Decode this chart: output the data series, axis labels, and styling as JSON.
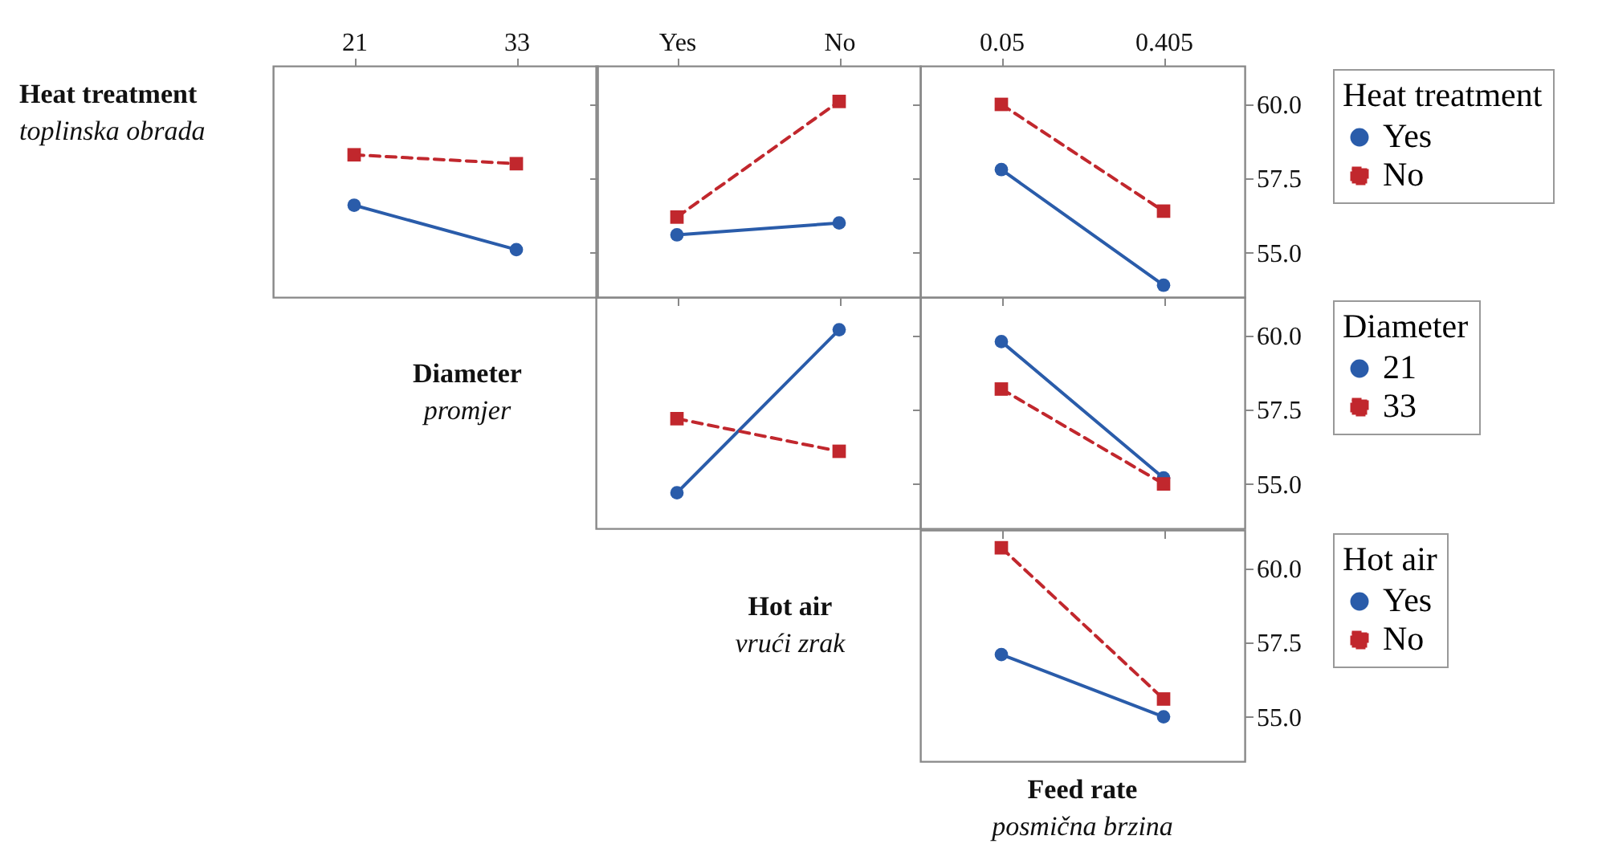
{
  "chart_data": [
    {
      "type": "line",
      "ylabel": "Heat treatment\ntoplinska obrada",
      "xlabel": "Diameter\npromjer",
      "categories": [
        "21",
        "33"
      ],
      "ylim": [
        53.5,
        61.3
      ],
      "yticks": [
        55,
        57.5,
        60
      ],
      "tick_labels": "x",
      "series": [
        {
          "color": "#2a5caa",
          "marker": "circle",
          "line_style": "solid",
          "values": [
            56.6,
            55.1
          ]
        },
        {
          "color": "#c1272d",
          "marker": "square",
          "line_style": "dashed",
          "values": [
            58.3,
            58.0
          ]
        }
      ]
    },
    {
      "type": "line",
      "categories": [
        "Yes",
        "No"
      ],
      "ylim": [
        53.5,
        61.3
      ],
      "yticks": [
        55,
        57.5,
        60
      ],
      "tick_labels": "x",
      "series": [
        {
          "color": "#2a5caa",
          "marker": "circle",
          "line_style": "solid",
          "values": [
            55.6,
            56.0
          ]
        },
        {
          "color": "#c1272d",
          "marker": "square",
          "line_style": "dashed",
          "values": [
            56.2,
            60.1
          ]
        }
      ]
    },
    {
      "type": "line",
      "categories": [
        "0.05",
        "0.405"
      ],
      "ylim": [
        53.5,
        61.3
      ],
      "yticks": [
        {
          "value": 55,
          "label": "55.0"
        },
        {
          "value": 57.5,
          "label": "57.5"
        },
        {
          "value": 60,
          "label": "60.0"
        }
      ],
      "legend": "right",
      "legend_title": "Heat treatment",
      "series": [
        {
          "name": "Yes",
          "color": "#2a5caa",
          "marker": "circle",
          "line_style": "solid",
          "values": [
            57.8,
            53.9
          ]
        },
        {
          "name": "No",
          "color": "#c1272d",
          "marker": "square",
          "line_style": "dashed",
          "values": [
            60.0,
            56.4
          ]
        }
      ]
    },
    {
      "type": "line",
      "xlabel": "Hot air\nvrući zrak",
      "categories": [
        null,
        null
      ],
      "ylim": [
        53.5,
        61.3
      ],
      "yticks": [
        55,
        57.5,
        60
      ],
      "tick_labels": false,
      "series": [
        {
          "color": "#2a5caa",
          "marker": "circle",
          "line_style": "solid",
          "values": [
            54.7,
            60.2
          ]
        },
        {
          "color": "#c1272d",
          "marker": "square",
          "line_style": "dashed",
          "values": [
            57.2,
            56.1
          ]
        }
      ]
    },
    {
      "type": "line",
      "categories": [
        "0.05",
        "0.405"
      ],
      "ylim": [
        53.5,
        61.3
      ],
      "yticks": [
        {
          "value": 55,
          "label": "55.0"
        },
        {
          "value": 57.5,
          "label": "57.5"
        },
        {
          "value": 60,
          "label": "60.0"
        }
      ],
      "tick_labels": "y",
      "legend": "right",
      "legend_title": "Diameter",
      "series": [
        {
          "name": "21",
          "color": "#2a5caa",
          "marker": "circle",
          "line_style": "solid",
          "values": [
            59.8,
            55.2
          ]
        },
        {
          "name": "33",
          "color": "#c1272d",
          "marker": "square",
          "line_style": "dashed",
          "values": [
            58.2,
            55.0
          ]
        }
      ]
    },
    {
      "type": "line",
      "xlabel": "Feed rate\nposmična brzina",
      "categories": [
        "0.05",
        "0.405"
      ],
      "ylim": [
        53.5,
        61.3
      ],
      "yticks": [
        {
          "value": 55,
          "label": "55.0"
        },
        {
          "value": 57.5,
          "label": "57.5"
        },
        {
          "value": 60,
          "label": "60.0"
        }
      ],
      "tick_labels": "y",
      "legend": "right",
      "legend_title": "Hot air",
      "series": [
        {
          "name": "Yes",
          "color": "#2a5caa",
          "marker": "circle",
          "line_style": "solid",
          "values": [
            57.1,
            55.0
          ]
        },
        {
          "name": "No",
          "color": "#c1272d",
          "marker": "square",
          "line_style": "dashed",
          "values": [
            60.7,
            55.6
          ]
        }
      ]
    }
  ]
}
